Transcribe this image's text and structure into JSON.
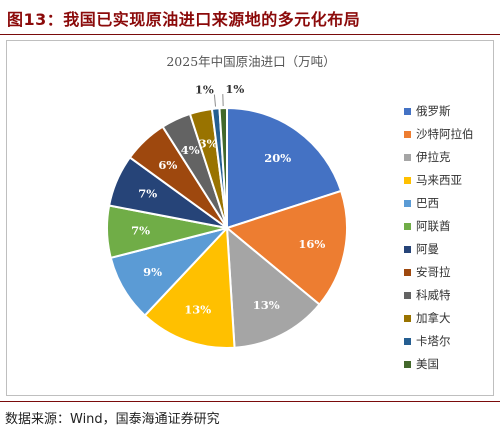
{
  "figure": {
    "title": "图13：我国已实现原油进口来源地的多元化布局",
    "source": "数据来源：Wind，国泰海通证券研究"
  },
  "chart_data": {
    "type": "pie",
    "title": "2025年中国原油进口（万吨）",
    "legend_position": "right",
    "slices": [
      {
        "label": "俄罗斯",
        "value": 20,
        "display": "20%",
        "color": "#4472c4"
      },
      {
        "label": "沙特阿拉伯",
        "value": 16,
        "display": "16%",
        "color": "#ed7d31"
      },
      {
        "label": "伊拉克",
        "value": 13,
        "display": "13%",
        "color": "#a5a5a5"
      },
      {
        "label": "马来西亚",
        "value": 13,
        "display": "13%",
        "color": "#ffc000"
      },
      {
        "label": "巴西",
        "value": 9,
        "display": "9%",
        "color": "#5b9bd5"
      },
      {
        "label": "阿联酋",
        "value": 7,
        "display": "7%",
        "color": "#70ad47"
      },
      {
        "label": "阿曼",
        "value": 7,
        "display": "7%",
        "color": "#264478"
      },
      {
        "label": "安哥拉",
        "value": 6,
        "display": "6%",
        "color": "#9e480e"
      },
      {
        "label": "科威特",
        "value": 4,
        "display": "4%",
        "color": "#636363"
      },
      {
        "label": "加拿大",
        "value": 3,
        "display": "3%",
        "color": "#997300"
      },
      {
        "label": "卡塔尔",
        "value": 1,
        "display": "1%",
        "color": "#255e91"
      },
      {
        "label": "美国",
        "value": 1,
        "display": "1%",
        "color": "#43682b"
      }
    ]
  }
}
